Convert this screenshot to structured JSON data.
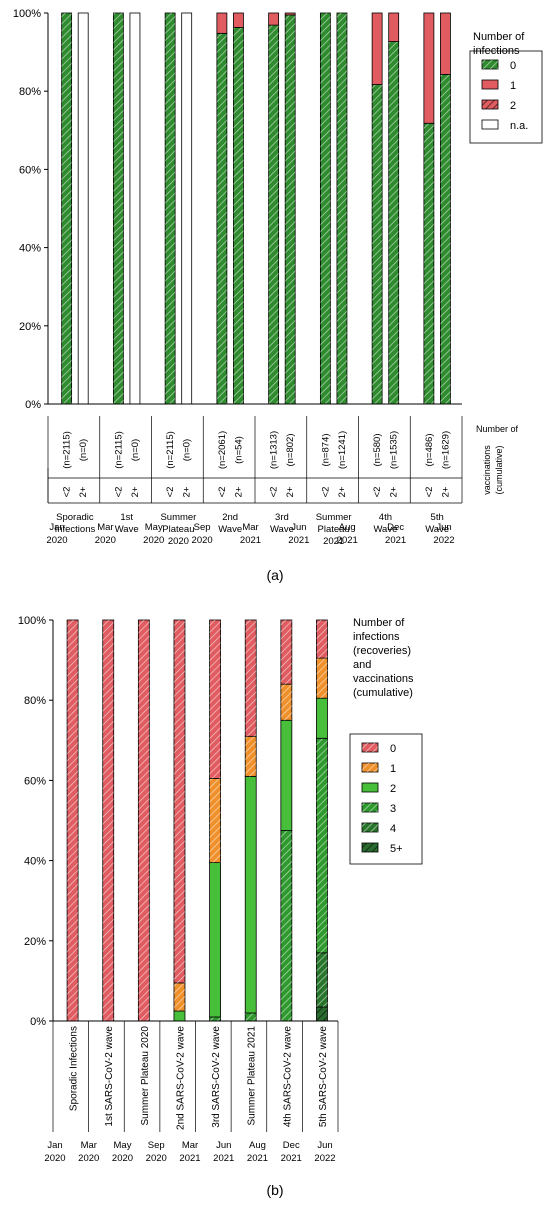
{
  "chart_data": [
    {
      "type": "bar",
      "stacked": true,
      "panel_label": "(a)",
      "ylim": [
        0,
        100
      ],
      "y_ticks": [
        "0%",
        "20%",
        "40%",
        "60%",
        "80%",
        "100%"
      ],
      "legend": {
        "title": "Number of\ninfections",
        "entries": [
          {
            "label": "0",
            "color": "#2e8b2e",
            "pattern": "hatch-light"
          },
          {
            "label": "1",
            "color": "#e05c61",
            "pattern": "solid"
          },
          {
            "label": "2",
            "color": "#e05c61",
            "pattern": "hatch-dark"
          },
          {
            "label": "n.a.",
            "color": "#ffffff",
            "pattern": "solid"
          }
        ]
      },
      "row_label": "Number of\nvaccinations\n(cumulative)",
      "groups": [
        {
          "label": "Sporadic\nInfections",
          "bars": [
            {
              "vacc": "<2",
              "n": "(n=2115)",
              "values": [
                100,
                0,
                0,
                0
              ]
            },
            {
              "vacc": "2+",
              "n": "(n=0)",
              "values": [
                0,
                0,
                0,
                100
              ]
            }
          ]
        },
        {
          "label": "1st\nWave",
          "bars": [
            {
              "vacc": "<2",
              "n": "(n=2115)",
              "values": [
                100,
                0,
                0,
                0
              ]
            },
            {
              "vacc": "2+",
              "n": "(n=0)",
              "values": [
                0,
                0,
                0,
                100
              ]
            }
          ]
        },
        {
          "label": "Summer\nPlateau\n2020",
          "bars": [
            {
              "vacc": "<2",
              "n": "(n=2115)",
              "values": [
                100,
                0,
                0,
                0
              ]
            },
            {
              "vacc": "2+",
              "n": "(n=0)",
              "values": [
                0,
                0,
                0,
                100
              ]
            }
          ]
        },
        {
          "label": "2nd\nWave",
          "bars": [
            {
              "vacc": "<2",
              "n": "(n=2061)",
              "values": [
                94.8,
                5.2,
                0,
                0
              ]
            },
            {
              "vacc": "2+",
              "n": "(n=54)",
              "values": [
                96.3,
                3.7,
                0,
                0
              ]
            }
          ]
        },
        {
          "label": "3rd\nWave",
          "bars": [
            {
              "vacc": "<2",
              "n": "(n=1313)",
              "values": [
                96.9,
                3.1,
                0,
                0
              ]
            },
            {
              "vacc": "2+",
              "n": "(n=802)",
              "values": [
                99.5,
                0.5,
                0,
                0
              ]
            }
          ]
        },
        {
          "label": "Summer\nPlateau\n2021",
          "bars": [
            {
              "vacc": "<2",
              "n": "(n=874)",
              "values": [
                100,
                0,
                0,
                0
              ]
            },
            {
              "vacc": "2+",
              "n": "(n=1241)",
              "values": [
                100,
                0,
                0,
                0
              ]
            }
          ]
        },
        {
          "label": "4th\nWave",
          "bars": [
            {
              "vacc": "<2",
              "n": "(n=580)",
              "values": [
                81.7,
                18.3,
                0,
                0
              ]
            },
            {
              "vacc": "2+",
              "n": "(n=1535)",
              "values": [
                92.7,
                7.3,
                0,
                0
              ]
            }
          ]
        },
        {
          "label": "5th\nWave",
          "bars": [
            {
              "vacc": "<2",
              "n": "(n=486)",
              "values": [
                71.8,
                28.2,
                0,
                0
              ]
            },
            {
              "vacc": "2+",
              "n": "(n=1629)",
              "values": [
                84.3,
                15.7,
                0,
                0
              ]
            }
          ]
        }
      ],
      "dates": [
        "Jan\n2020",
        "Mar\n2020",
        "May\n2020",
        "Sep\n2020",
        "Mar\n2021",
        "Jun\n2021",
        "Aug\n2021",
        "Dec\n2021",
        "Jun\n2022"
      ]
    },
    {
      "type": "bar",
      "stacked": true,
      "panel_label": "(b)",
      "ylim": [
        0,
        100
      ],
      "y_ticks": [
        "0%",
        "20%",
        "40%",
        "60%",
        "80%",
        "100%"
      ],
      "legend": {
        "title": "Number of\ninfections\n(recoveries)\nand\nvaccinations\n(cumulative)",
        "entries": [
          {
            "label": "0",
            "color": "#e05c61",
            "pattern": "hatch-light"
          },
          {
            "label": "1",
            "color": "#f0902a",
            "pattern": "hatch-light"
          },
          {
            "label": "2",
            "color": "#47bf3a",
            "pattern": "solid"
          },
          {
            "label": "3",
            "color": "#2e9a2e",
            "pattern": "hatch-light"
          },
          {
            "label": "4",
            "color": "#27752a",
            "pattern": "hatch-light"
          },
          {
            "label": "5+",
            "color": "#2a6b2f",
            "pattern": "hatch-dark"
          }
        ]
      },
      "categories": [
        "Sporadic Infections",
        "1st SARS-CoV-2 wave",
        "Summer Plateau 2020",
        "2nd SARS-CoV-2 wave",
        "3rd SARS-CoV-2 wave",
        "Summer Plateau 2021",
        "4th SARS-CoV-2 wave",
        "5th SARS-CoV-2 wave"
      ],
      "series": [
        {
          "name": "5+",
          "values": [
            0,
            0,
            0,
            0,
            0,
            0,
            0,
            3.5
          ]
        },
        {
          "name": "4",
          "values": [
            0,
            0,
            0,
            0,
            0,
            0,
            0,
            13.5
          ]
        },
        {
          "name": "3",
          "values": [
            0,
            0,
            0,
            0,
            1,
            2,
            47.5,
            53.5
          ]
        },
        {
          "name": "2",
          "values": [
            0,
            0,
            0,
            2.5,
            38.5,
            59,
            27.5,
            10
          ]
        },
        {
          "name": "1",
          "values": [
            0,
            0,
            0,
            7,
            21,
            10,
            9,
            10
          ]
        },
        {
          "name": "0",
          "values": [
            100,
            100,
            100,
            90.5,
            39.5,
            29,
            16,
            9.5
          ]
        }
      ],
      "dates": [
        "Jan\n2020",
        "Mar\n2020",
        "May\n2020",
        "Sep\n2020",
        "Mar\n2021",
        "Jun\n2021",
        "Aug\n2021",
        "Dec\n2021",
        "Jun\n2022"
      ]
    }
  ]
}
